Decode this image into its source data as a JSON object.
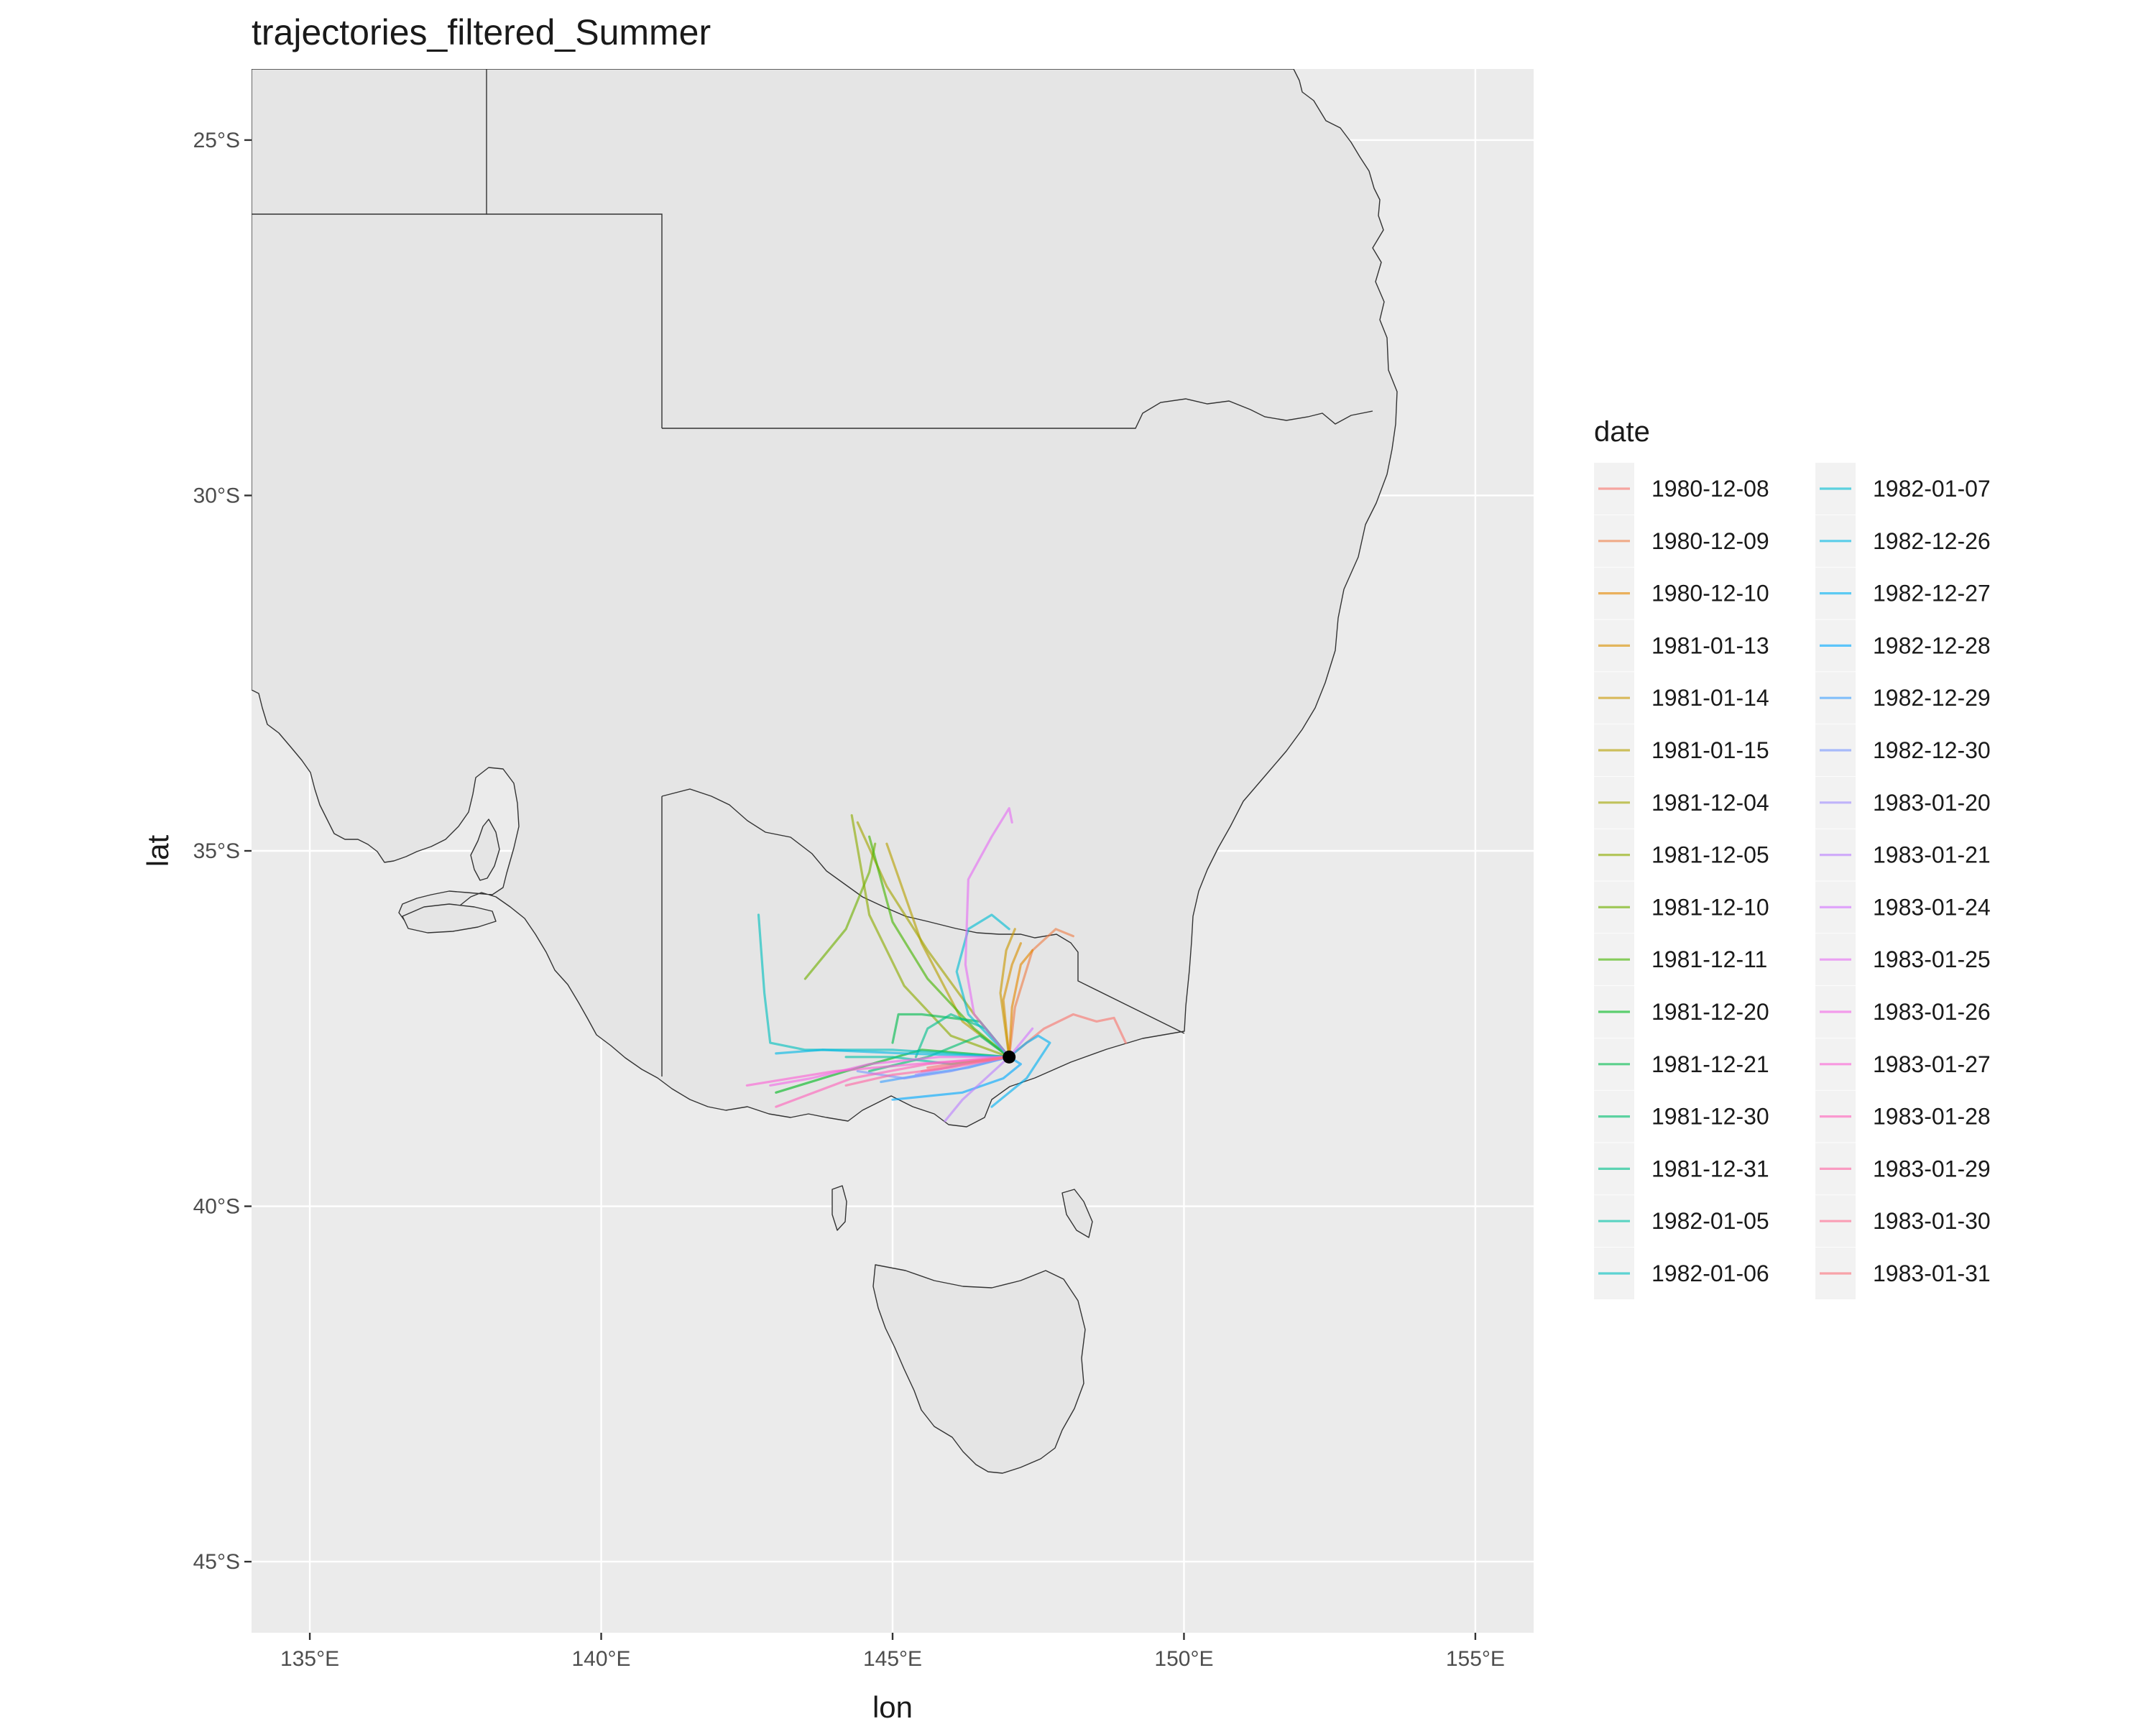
{
  "title": "trajectories_filtered_Summer",
  "chart_data": {
    "type": "line",
    "title": "trajectories_filtered_Summer",
    "xlabel": "lon",
    "ylabel": "lat",
    "xlim": [
      134,
      156
    ],
    "ylim": [
      -46,
      -24
    ],
    "x_ticks": [
      {
        "value": 135,
        "label": "135°E"
      },
      {
        "value": 140,
        "label": "140°E"
      },
      {
        "value": 145,
        "label": "145°E"
      },
      {
        "value": 150,
        "label": "150°E"
      },
      {
        "value": 155,
        "label": "155°E"
      }
    ],
    "y_ticks": [
      {
        "value": -25,
        "label": "25°S"
      },
      {
        "value": -30,
        "label": "30°S"
      },
      {
        "value": -35,
        "label": "35°S"
      },
      {
        "value": -40,
        "label": "40°S"
      },
      {
        "value": -45,
        "label": "45°S"
      }
    ],
    "grid": true,
    "legend": {
      "title": "date",
      "placement": "right",
      "columns": 2
    },
    "origin": {
      "lon": 147.0,
      "lat": -37.9
    },
    "series": [
      {
        "name": "1980-12-08",
        "color": "#F8766D",
        "lon": [
          147.0,
          147.6,
          148.1,
          148.5,
          148.8,
          149.0
        ],
        "lat": [
          -37.9,
          -37.5,
          -37.3,
          -37.4,
          -37.35,
          -37.7
        ]
      },
      {
        "name": "1980-12-09",
        "color": "#EF7F49",
        "lon": [
          147.0,
          147.1,
          147.4,
          147.8,
          148.1
        ],
        "lat": [
          -37.9,
          -37.2,
          -36.4,
          -36.1,
          -36.2
        ]
      },
      {
        "name": "1980-12-10",
        "color": "#E58700",
        "lon": [
          147.0,
          147.05,
          147.2,
          147.4
        ],
        "lat": [
          -37.9,
          -37.2,
          -36.6,
          -36.4
        ]
      },
      {
        "name": "1981-01-13",
        "color": "#D89000",
        "lon": [
          147.0,
          146.9,
          147.05,
          147.2
        ],
        "lat": [
          -37.9,
          -37.1,
          -36.6,
          -36.3
        ]
      },
      {
        "name": "1981-01-14",
        "color": "#C99800",
        "lon": [
          147.0,
          146.85,
          146.95,
          147.1
        ],
        "lat": [
          -37.9,
          -37.0,
          -36.4,
          -36.1
        ]
      },
      {
        "name": "1981-01-15",
        "color": "#B79F00",
        "lon": [
          147.0,
          146.2,
          145.5,
          144.9
        ],
        "lat": [
          -37.9,
          -37.4,
          -36.3,
          -34.9
        ]
      },
      {
        "name": "1981-12-04",
        "color": "#A3A500",
        "lon": [
          147.0,
          146.4,
          145.6,
          144.9,
          144.4
        ],
        "lat": [
          -37.9,
          -37.3,
          -36.4,
          -35.5,
          -34.6
        ]
      },
      {
        "name": "1981-12-05",
        "color": "#8CAB00",
        "lon": [
          147.0,
          146.0,
          145.2,
          144.6,
          144.3
        ],
        "lat": [
          -37.9,
          -37.6,
          -36.9,
          -35.9,
          -34.5
        ]
      },
      {
        "name": "1981-12-10",
        "color": "#6FB000",
        "lon": [
          143.5,
          144.2,
          144.6,
          144.7
        ],
        "lat": [
          -36.8,
          -36.1,
          -35.3,
          -34.9
        ]
      },
      {
        "name": "1981-12-11",
        "color": "#45B500",
        "lon": [
          147.0,
          146.4,
          145.6,
          145.0,
          144.6
        ],
        "lat": [
          -37.9,
          -37.5,
          -36.8,
          -36.0,
          -34.8
        ]
      },
      {
        "name": "1981-12-20",
        "color": "#00B81F",
        "lon": [
          147.0,
          145.5,
          144.2,
          143.0
        ],
        "lat": [
          -37.9,
          -37.8,
          -38.1,
          -38.4
        ]
      },
      {
        "name": "1981-12-21",
        "color": "#00BB4E",
        "lon": [
          147.0,
          146.5,
          145.5,
          145.1,
          145.0
        ],
        "lat": [
          -37.9,
          -37.4,
          -37.3,
          -37.3,
          -37.7
        ]
      },
      {
        "name": "1981-12-30",
        "color": "#00BE70",
        "lon": [
          147.0,
          146.5,
          145.6,
          144.6
        ],
        "lat": [
          -37.9,
          -37.6,
          -37.9,
          -38.1
        ]
      },
      {
        "name": "1981-12-31",
        "color": "#00C08D",
        "lon": [
          147.0,
          146.6,
          146.0,
          145.6,
          145.4
        ],
        "lat": [
          -37.9,
          -37.5,
          -37.3,
          -37.5,
          -37.9
        ]
      },
      {
        "name": "1982-01-05",
        "color": "#00C1A7",
        "lon": [
          147.0,
          146.0,
          145.0,
          144.2
        ],
        "lat": [
          -37.9,
          -38.0,
          -37.9,
          -37.9
        ]
      },
      {
        "name": "1982-01-06",
        "color": "#00C0BF",
        "lon": [
          147.0,
          145.0,
          143.5,
          142.9,
          142.8,
          142.7
        ],
        "lat": [
          -37.9,
          -37.8,
          -37.8,
          -37.7,
          -37.0,
          -35.9
        ]
      },
      {
        "name": "1982-01-07",
        "color": "#00BDD4",
        "lon": [
          147.0,
          146.3,
          146.1,
          146.3,
          146.7,
          147.0
        ],
        "lat": [
          -37.9,
          -37.3,
          -36.7,
          -36.1,
          -35.9,
          -36.1
        ]
      },
      {
        "name": "1982-12-26",
        "color": "#00B8E5",
        "lon": [
          147.0,
          145.2,
          143.8,
          143.0
        ],
        "lat": [
          -37.9,
          -37.85,
          -37.8,
          -37.85
        ]
      },
      {
        "name": "1982-12-27",
        "color": "#00B1F3",
        "lon": [
          147.0,
          147.3,
          147.5,
          147.7,
          147.3,
          146.7
        ],
        "lat": [
          -37.9,
          -37.7,
          -37.6,
          -37.7,
          -38.2,
          -38.6
        ]
      },
      {
        "name": "1982-12-28",
        "color": "#00A9FF",
        "lon": [
          147.0,
          147.2,
          146.9,
          146.2,
          145.0
        ],
        "lat": [
          -37.9,
          -38.0,
          -38.2,
          -38.4,
          -38.5
        ]
      },
      {
        "name": "1982-12-29",
        "color": "#3DA0FF",
        "lon": [
          147.0,
          146.3,
          145.5,
          144.8
        ],
        "lat": [
          -37.9,
          -38.05,
          -38.15,
          -38.25
        ]
      },
      {
        "name": "1982-12-30",
        "color": "#7997FF",
        "lon": [
          147.0,
          146.0,
          145.2,
          144.4
        ],
        "lat": [
          -37.9,
          -38.1,
          -38.2,
          -38.1
        ]
      },
      {
        "name": "1983-01-20",
        "color": "#9F8CFF",
        "lon": [
          147.0,
          146.2,
          145.4
        ],
        "lat": [
          -37.9,
          -38.0,
          -38.15
        ]
      },
      {
        "name": "1983-01-21",
        "color": "#BC81FF",
        "lon": [
          147.0,
          146.6,
          146.2,
          145.9
        ],
        "lat": [
          -37.9,
          -38.2,
          -38.5,
          -38.8
        ]
      },
      {
        "name": "1983-01-24",
        "color": "#D376FF",
        "lon": [
          147.0,
          147.2,
          147.4
        ],
        "lat": [
          -37.9,
          -37.7,
          -37.5
        ]
      },
      {
        "name": "1983-01-25",
        "color": "#E56EF4",
        "lon": [
          147.0,
          146.4,
          146.25,
          146.3,
          146.7,
          147.0,
          147.05
        ],
        "lat": [
          -37.9,
          -37.3,
          -36.6,
          -35.4,
          -34.8,
          -34.4,
          -34.6
        ]
      },
      {
        "name": "1983-01-26",
        "color": "#F365E6",
        "lon": [
          147.0,
          145.8,
          144.6,
          143.6,
          142.9
        ],
        "lat": [
          -37.9,
          -37.9,
          -38.0,
          -38.2,
          -38.3
        ]
      },
      {
        "name": "1983-01-27",
        "color": "#FC61D5",
        "lon": [
          147.0,
          145.4,
          144.0,
          142.5
        ],
        "lat": [
          -37.9,
          -38.0,
          -38.1,
          -38.3
        ]
      },
      {
        "name": "1983-01-28",
        "color": "#FF62BC",
        "lon": [
          147.0,
          145.6,
          144.3,
          143.0
        ],
        "lat": [
          -37.9,
          -38.0,
          -38.2,
          -38.6
        ]
      },
      {
        "name": "1983-01-29",
        "color": "#FF67A4",
        "lon": [
          147.0,
          146.0,
          145.0,
          144.2
        ],
        "lat": [
          -37.9,
          -38.05,
          -38.15,
          -38.3
        ]
      },
      {
        "name": "1983-01-30",
        "color": "#FF6C91",
        "lon": [
          147.0,
          146.2,
          145.5
        ],
        "lat": [
          -37.9,
          -38.0,
          -38.1
        ]
      },
      {
        "name": "1983-01-31",
        "color": "#FB727D",
        "lon": [
          147.0,
          146.5,
          146.0,
          145.6
        ],
        "lat": [
          -37.9,
          -37.95,
          -38.0,
          -38.05
        ]
      }
    ]
  }
}
